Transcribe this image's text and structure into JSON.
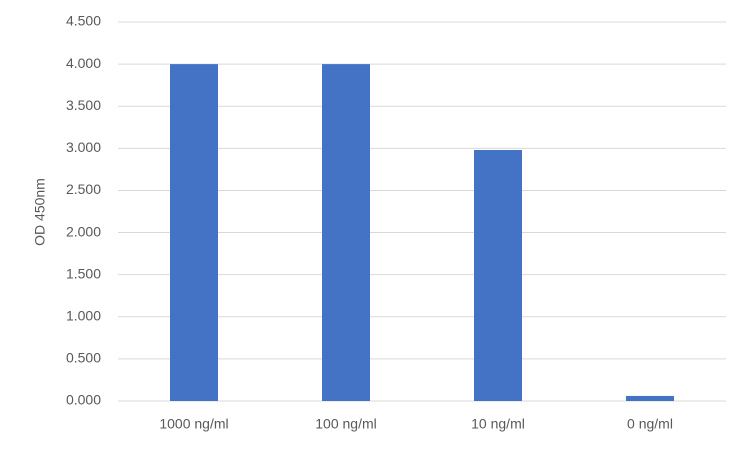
{
  "chart_data": {
    "type": "bar",
    "y_label": "OD 450nm",
    "categories": [
      "1000 ng/ml",
      "100 ng/ml",
      "10 ng/ml",
      "0 ng/ml"
    ],
    "values": [
      4.0,
      4.0,
      2.98,
      0.06
    ],
    "color": "#4472c4",
    "ylim": [
      0,
      4.5
    ],
    "yticks": [
      {
        "value": 0,
        "label": "0.000"
      },
      {
        "value": 0.5,
        "label": "0.500"
      },
      {
        "value": 1,
        "label": "1.000"
      },
      {
        "value": 1.5,
        "label": "1.500"
      },
      {
        "value": 2,
        "label": "2.000"
      },
      {
        "value": 2.5,
        "label": "2.500"
      },
      {
        "value": 3,
        "label": "3.000"
      },
      {
        "value": 3.5,
        "label": "3.500"
      },
      {
        "value": 4,
        "label": "4.000"
      },
      {
        "value": 4.5,
        "label": "4.500"
      }
    ],
    "grid": true
  }
}
